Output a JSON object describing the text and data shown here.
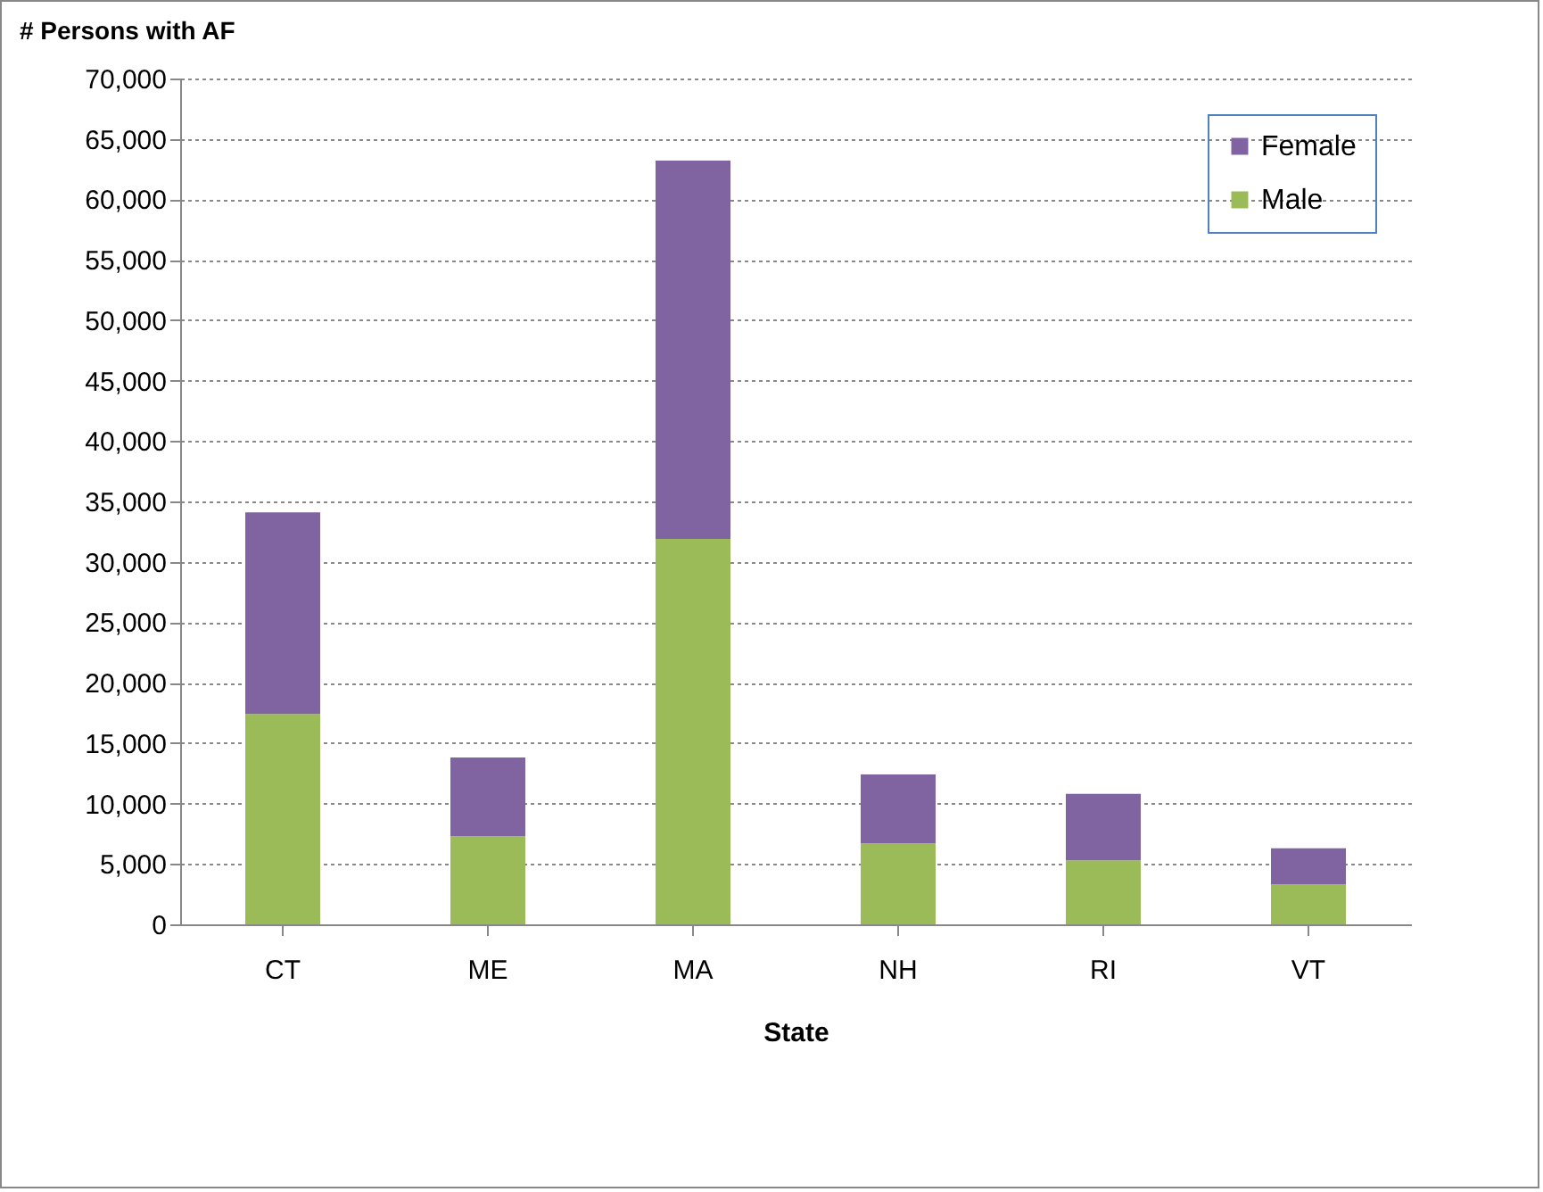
{
  "chart_data": {
    "type": "bar",
    "title": "# Persons with AF",
    "xlabel": "State",
    "stacked": true,
    "categories": [
      "CT",
      "ME",
      "MA",
      "NH",
      "RI",
      "VT"
    ],
    "series": [
      {
        "name": "Male",
        "color": "#9bbb59",
        "values": [
          17400,
          7300,
          31900,
          6700,
          5300,
          3300
        ]
      },
      {
        "name": "Female",
        "color": "#8064a2",
        "values": [
          16700,
          6500,
          31300,
          5700,
          5500,
          3000
        ]
      }
    ],
    "ylim": [
      0,
      70000
    ],
    "yticks": [
      0,
      {
        "value": 5000,
        "label": "5,000"
      },
      {
        "value": 10000,
        "label": "10,000"
      },
      {
        "value": 15000,
        "label": "15,000"
      },
      {
        "value": 20000,
        "label": "20,000"
      },
      {
        "value": 25000,
        "label": "25,000"
      },
      {
        "value": 30000,
        "label": "30,000"
      },
      {
        "value": 35000,
        "label": "35,000"
      },
      {
        "value": 40000,
        "label": "40,000"
      },
      {
        "value": 45000,
        "label": "45,000"
      },
      {
        "value": 50000,
        "label": "50,000"
      },
      {
        "value": 55000,
        "label": "55,000"
      },
      {
        "value": 60000,
        "label": "60,000"
      },
      {
        "value": 65000,
        "label": "65,000"
      },
      {
        "value": 70000,
        "label": "70,000"
      }
    ],
    "grid": "y",
    "legend": "top right"
  }
}
